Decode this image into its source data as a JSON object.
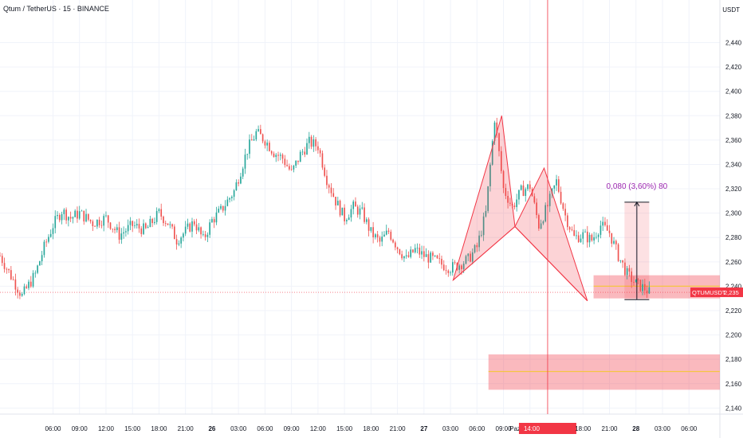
{
  "header": {
    "title": "Qtum / TetherUS · 15 · BINANCE",
    "currency": "USDT"
  },
  "colors": {
    "up": "#26a69a",
    "down": "#ef5350",
    "pattern_fill": "rgba(242,54,69,0.22)",
    "pattern_stroke": "#f23645",
    "zone_fill": "rgba(242,54,69,0.35)",
    "zone_line": "#f5c542",
    "measure_fill": "rgba(242,54,69,0.15)",
    "measure_text": "#9c27b0",
    "cursor_line": "#f23645",
    "grid": "#f0f3fa"
  },
  "chart_data": {
    "type": "candlestick",
    "symbol": "QTUMUSDT",
    "ylim": [
      2.135,
      2.475
    ],
    "y_ticks": [
      "2,140",
      "2,160",
      "2,180",
      "2,200",
      "2,220",
      "2,240",
      "2,260",
      "2,280",
      "2,300",
      "2,320",
      "2,340",
      "2,360",
      "2,380",
      "2,400",
      "2,420",
      "2,440"
    ],
    "x_ticks": [
      "06:00",
      "09:00",
      "12:00",
      "15:00",
      "18:00",
      "21:00",
      "26",
      "03:00",
      "06:00",
      "09:00",
      "12:00",
      "15:00",
      "18:00",
      "21:00",
      "27",
      "03:00",
      "06:00",
      "09:00",
      "Paz 27 Nis '25",
      "14:00",
      "18:00",
      "21:00",
      "28",
      "03:00",
      "06:00"
    ],
    "bold_ticks": [
      "26",
      "27",
      "28"
    ],
    "hours_from_first_tick": [
      0,
      3,
      6,
      9,
      12,
      15,
      18,
      21,
      24,
      27,
      30,
      33,
      36,
      39,
      42,
      45,
      48,
      51,
      54,
      56,
      60,
      63,
      66,
      69,
      72
    ],
    "x_range_hours": [
      -6,
      75.5
    ],
    "price_path": [
      [
        -6,
        2.265
      ],
      [
        -4.5,
        2.245
      ],
      [
        -3.5,
        2.232
      ],
      [
        -2,
        2.25
      ],
      [
        -1,
        2.272
      ],
      [
        0,
        2.29
      ],
      [
        1,
        2.302
      ],
      [
        2,
        2.296
      ],
      [
        3,
        2.3
      ],
      [
        4.5,
        2.292
      ],
      [
        6,
        2.296
      ],
      [
        7.5,
        2.282
      ],
      [
        9,
        2.29
      ],
      [
        10.5,
        2.286
      ],
      [
        12,
        2.3
      ],
      [
        13,
        2.292
      ],
      [
        14,
        2.278
      ],
      [
        15,
        2.285
      ],
      [
        16,
        2.293
      ],
      [
        17,
        2.278
      ],
      [
        18,
        2.294
      ],
      [
        19,
        2.302
      ],
      [
        20.5,
        2.318
      ],
      [
        22,
        2.352
      ],
      [
        23,
        2.366
      ],
      [
        24,
        2.36
      ],
      [
        25,
        2.35
      ],
      [
        26,
        2.345
      ],
      [
        27,
        2.333
      ],
      [
        28,
        2.348
      ],
      [
        29,
        2.358
      ],
      [
        30,
        2.355
      ],
      [
        31,
        2.328
      ],
      [
        32,
        2.31
      ],
      [
        33,
        2.296
      ],
      [
        34,
        2.305
      ],
      [
        35,
        2.3
      ],
      [
        36,
        2.284
      ],
      [
        37,
        2.276
      ],
      [
        38,
        2.285
      ],
      [
        39,
        2.272
      ],
      [
        40,
        2.262
      ],
      [
        41,
        2.27
      ],
      [
        42,
        2.265
      ],
      [
        43,
        2.262
      ],
      [
        44,
        2.258
      ],
      [
        45,
        2.255
      ],
      [
        46,
        2.258
      ],
      [
        47,
        2.262
      ],
      [
        48,
        2.272
      ],
      [
        49,
        2.3
      ],
      [
        50,
        2.378
      ],
      [
        51,
        2.32
      ],
      [
        52,
        2.305
      ],
      [
        53,
        2.318
      ],
      [
        54,
        2.322
      ],
      [
        55,
        2.29
      ],
      [
        56,
        2.306
      ],
      [
        57,
        2.326
      ],
      [
        58,
        2.298
      ],
      [
        59,
        2.28
      ],
      [
        60,
        2.282
      ],
      [
        61,
        2.278
      ],
      [
        62,
        2.29
      ],
      [
        63,
        2.284
      ],
      [
        64,
        2.265
      ],
      [
        65,
        2.25
      ],
      [
        66,
        2.242
      ],
      [
        67,
        2.238
      ],
      [
        67.5,
        2.235
      ]
    ],
    "pattern": {
      "label": "bearish harmonic (XABCD)",
      "points": [
        {
          "hours": 45.3,
          "price": 2.245
        },
        {
          "hours": 50.8,
          "price": 2.38
        },
        {
          "hours": 52.3,
          "price": 2.289
        },
        {
          "hours": 55.6,
          "price": 2.337
        },
        {
          "hours": 60.5,
          "price": 2.228
        }
      ]
    },
    "zones": [
      {
        "price_top": 2.249,
        "price_bottom": 2.23,
        "mid": 2.24
      },
      {
        "price_top": 2.184,
        "price_bottom": 2.155,
        "mid": 2.17
      }
    ],
    "measure": {
      "label": "0,080 (3,60%) 80",
      "price_from": 2.229,
      "price_to": 2.309,
      "hours_from": 64.7,
      "hours_to": 67.5
    },
    "cursor_hours": 56,
    "current_price": {
      "label": "QTUMUSDT",
      "value": "2,235",
      "price": 2.235
    }
  }
}
